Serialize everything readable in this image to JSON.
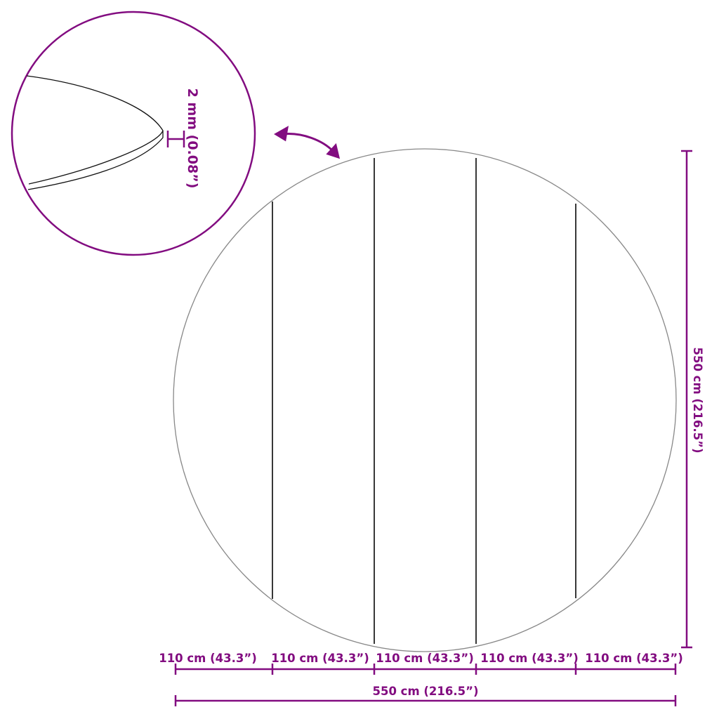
{
  "colors": {
    "accent": "#820c80",
    "outline": "#777777",
    "seam": "#222222"
  },
  "detail": {
    "thickness_label": "2 mm (0.08”)"
  },
  "dimensions": {
    "height_label": "550 cm (216.5”)",
    "width_label": "550 cm (216.5”)",
    "segment_labels": [
      "110 cm (43.3”)",
      "110 cm (43.3”)",
      "110 cm (43.3”)",
      "110 cm (43.3”)",
      "110 cm (43.3”)"
    ]
  }
}
